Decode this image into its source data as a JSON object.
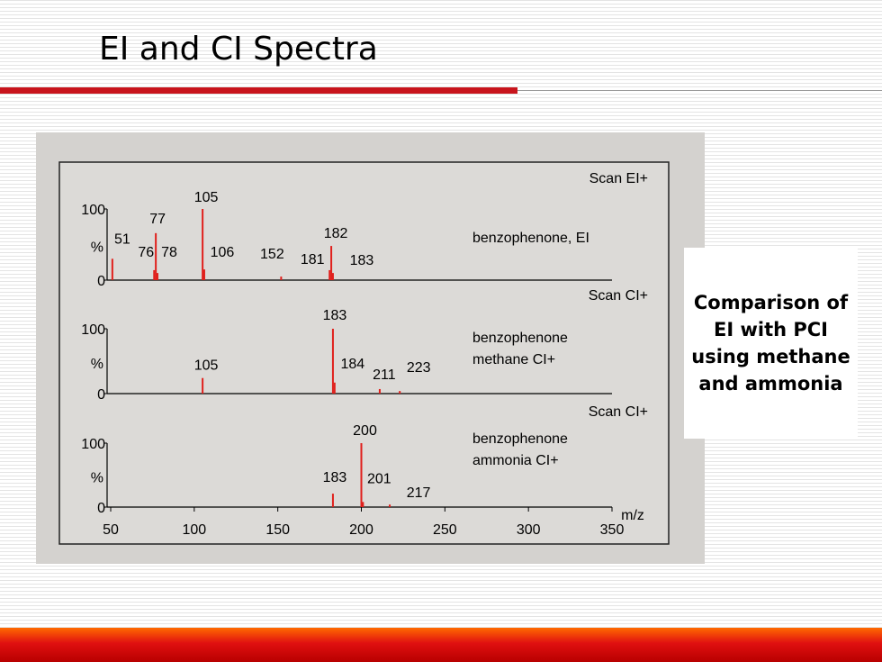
{
  "title": "EI and CI Spectra",
  "callout": "Comparison of EI with PCI using methane and ammonia",
  "chart_data": [
    {
      "type": "stick",
      "scan": "Scan EI+",
      "label": [
        "benzophenone, EI"
      ],
      "ylabel": "%",
      "color": "#e0201c",
      "x": [
        51,
        76,
        77,
        78,
        105,
        106,
        152,
        181,
        182,
        183
      ],
      "values": [
        30,
        14,
        66,
        10,
        100,
        15,
        5,
        14,
        48,
        10
      ],
      "xlim": [
        50,
        350
      ],
      "ylim": [
        0,
        100
      ],
      "yticks": [
        0,
        100
      ]
    },
    {
      "type": "stick",
      "scan": "Scan CI+",
      "label": [
        "benzophenone",
        "methane CI+"
      ],
      "ylabel": "%",
      "color": "#e0201c",
      "x": [
        105,
        183,
        184,
        211,
        223
      ],
      "values": [
        24,
        100,
        17,
        7,
        4
      ],
      "xlim": [
        50,
        350
      ],
      "ylim": [
        0,
        100
      ],
      "yticks": [
        0,
        100
      ]
    },
    {
      "type": "stick",
      "scan": "Scan CI+",
      "label": [
        "benzophenone",
        "ammonia CI+"
      ],
      "ylabel": "%",
      "xlabel": "m/z",
      "color": "#e0201c",
      "x": [
        183,
        200,
        201,
        217
      ],
      "values": [
        21,
        100,
        8,
        4
      ],
      "xlim": [
        50,
        350
      ],
      "ylim": [
        0,
        100
      ],
      "yticks": [
        0,
        100
      ],
      "xticks": [
        50,
        100,
        150,
        200,
        250,
        300,
        350
      ]
    }
  ]
}
